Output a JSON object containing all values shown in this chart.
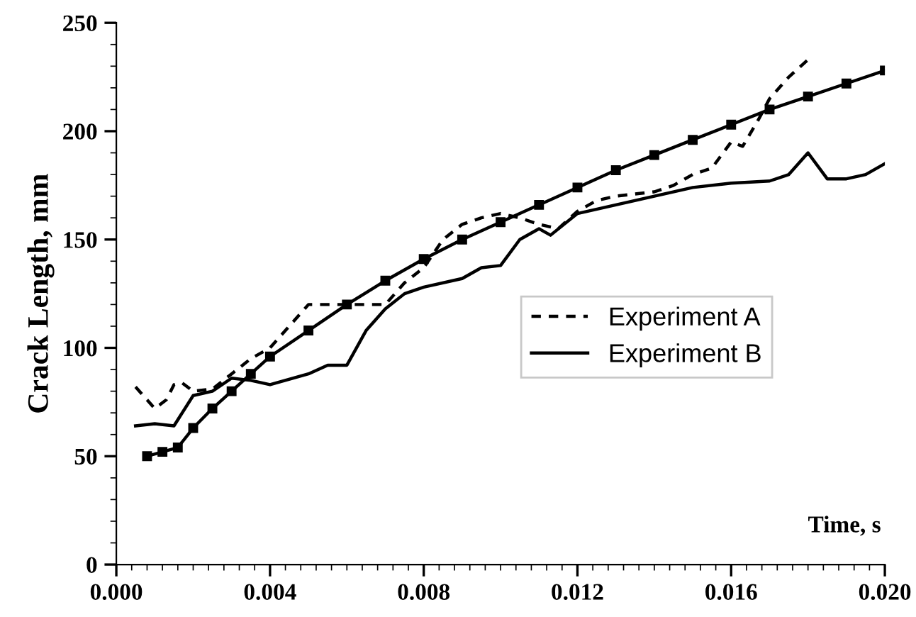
{
  "chart_data": {
    "type": "line",
    "xlabel": "Time, s",
    "ylabel": "Crack Length, mm",
    "xlim": [
      0,
      0.02
    ],
    "ylim": [
      0,
      250
    ],
    "xticks": [
      {
        "value": 0,
        "label": "0.000"
      },
      {
        "value": 0.004,
        "label": "0.004"
      },
      {
        "value": 0.008,
        "label": "0.008"
      },
      {
        "value": 0.012,
        "label": "0.012"
      },
      {
        "value": 0.016,
        "label": "0.016"
      },
      {
        "value": 0.02,
        "label": "0.020"
      }
    ],
    "yticks": [
      0,
      50,
      100,
      150,
      200,
      250
    ],
    "grid": false,
    "legend": "center right",
    "series": [
      {
        "color": "#000000",
        "marker": "square",
        "line_style": "solid",
        "x": [
          0.0008,
          0.0012,
          0.0016,
          0.002,
          0.0025,
          0.003,
          0.0035,
          0.004,
          0.005,
          0.006,
          0.007,
          0.008,
          0.009,
          0.01,
          0.011,
          0.012,
          0.013,
          0.014,
          0.015,
          0.016,
          0.017,
          0.018,
          0.019,
          0.02
        ],
        "values": [
          50,
          52,
          54,
          63,
          72,
          80,
          88,
          96,
          108,
          120,
          131,
          141,
          150,
          158,
          166,
          174,
          182,
          189,
          196,
          203,
          210,
          216,
          222,
          228
        ]
      },
      {
        "name": "Experiment A",
        "color": "#000000",
        "marker": "none",
        "line_style": "dashed",
        "x": [
          0.0005,
          0.001,
          0.0013,
          0.0015,
          0.0017,
          0.002,
          0.0025,
          0.003,
          0.0035,
          0.004,
          0.0045,
          0.005,
          0.006,
          0.007,
          0.0075,
          0.008,
          0.0085,
          0.009,
          0.0095,
          0.01,
          0.0105,
          0.011,
          0.0115,
          0.012,
          0.0125,
          0.013,
          0.014,
          0.0145,
          0.015,
          0.0155,
          0.016,
          0.0163,
          0.0167,
          0.017,
          0.0175,
          0.018
        ],
        "values": [
          82,
          72,
          76,
          83,
          84,
          80,
          81,
          88,
          95,
          100,
          110,
          120,
          120,
          120,
          130,
          137,
          150,
          157,
          160,
          162,
          160,
          157,
          155,
          163,
          168,
          170,
          172,
          175,
          180,
          183,
          195,
          193,
          205,
          215,
          225,
          233
        ]
      },
      {
        "name": "Experiment B",
        "color": "#000000",
        "marker": "none",
        "line_style": "solid",
        "x": [
          0.0005,
          0.001,
          0.0015,
          0.002,
          0.0025,
          0.003,
          0.0035,
          0.004,
          0.005,
          0.0055,
          0.006,
          0.0065,
          0.007,
          0.0075,
          0.008,
          0.009,
          0.0095,
          0.01,
          0.0105,
          0.011,
          0.0113,
          0.012,
          0.013,
          0.014,
          0.015,
          0.016,
          0.017,
          0.0175,
          0.018,
          0.0185,
          0.019,
          0.0195,
          0.02
        ],
        "values": [
          64,
          65,
          64,
          78,
          80,
          86,
          85,
          83,
          88,
          92,
          92,
          108,
          118,
          125,
          128,
          132,
          137,
          138,
          150,
          155,
          152,
          162,
          166,
          170,
          174,
          176,
          177,
          180,
          190,
          178,
          178,
          180,
          185
        ]
      }
    ]
  }
}
